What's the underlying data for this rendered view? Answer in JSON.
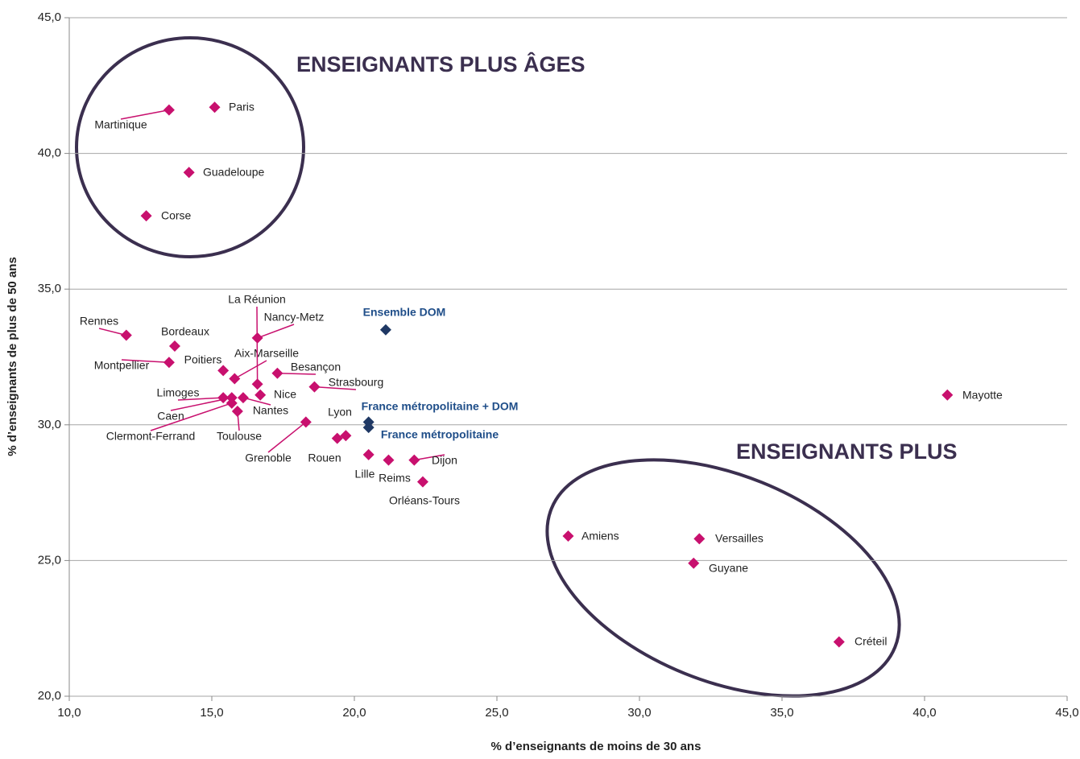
{
  "chart_data": {
    "type": "scatter",
    "xlabel": "% d’enseignants de moins de 30 ans",
    "ylabel": "% d’enseignants de plus de 50 ans",
    "annotations": [
      "ENSEIGNANTS PLUS ÂGES",
      "ENSEIGNANTS PLUS"
    ],
    "xlim": [
      10,
      45
    ],
    "ylim": [
      20,
      45
    ],
    "xticks": [
      {
        "value": 10,
        "label": "10,0"
      },
      {
        "value": 15,
        "label": "15,0"
      },
      {
        "value": 20,
        "label": "20,0"
      },
      {
        "value": 25,
        "label": "25,0"
      },
      {
        "value": 30,
        "label": "30,0"
      },
      {
        "value": 35,
        "label": "35,0"
      },
      {
        "value": 40,
        "label": "40,0"
      },
      {
        "value": 45,
        "label": "45,0"
      }
    ],
    "yticks": [
      {
        "value": 20,
        "label": "20,0"
      },
      {
        "value": 25,
        "label": "25,0"
      },
      {
        "value": 30,
        "label": "30,0"
      },
      {
        "value": 35,
        "label": "35,0"
      },
      {
        "value": 40,
        "label": "40,0"
      },
      {
        "value": 45,
        "label": "45,0"
      }
    ],
    "grid": true,
    "series": [
      {
        "color": "#c8106e",
        "labels": [
          "Martinique",
          "Paris",
          "Guadeloupe",
          "Corse",
          "Rennes",
          "Bordeaux",
          "Montpellier",
          "Poitiers",
          "Aix-Marseille",
          "La Réunion",
          "Nancy-Metz",
          "Besançon",
          "Nice",
          "Strasbourg",
          "Limoges",
          "Caen",
          "Clermont-Ferrand",
          "Nantes",
          "Toulouse",
          "Grenoble",
          "Lyon",
          "Rouen",
          "Lille",
          "Reims",
          "Dijon",
          "Orléans-Tours",
          "Mayotte",
          "Amiens",
          "Versailles",
          "Guyane",
          "Créteil"
        ],
        "x": [
          13.5,
          15.1,
          14.2,
          12.7,
          12.0,
          13.7,
          13.5,
          15.4,
          15.8,
          16.6,
          16.6,
          17.3,
          16.7,
          18.6,
          15.4,
          15.7,
          15.7,
          16.1,
          15.9,
          18.3,
          19.7,
          19.4,
          20.5,
          21.2,
          22.1,
          22.4,
          40.8,
          27.5,
          32.1,
          31.9,
          37.0
        ],
        "values": [
          41.6,
          41.7,
          39.3,
          37.7,
          33.3,
          32.9,
          32.3,
          32.0,
          31.7,
          31.5,
          33.2,
          31.9,
          31.1,
          31.4,
          31.0,
          31.0,
          30.8,
          31.0,
          30.5,
          30.1,
          29.6,
          29.5,
          28.9,
          28.7,
          28.7,
          27.9,
          31.1,
          25.9,
          25.8,
          24.9,
          22.0
        ]
      },
      {
        "color": "#1f3864",
        "labels": [
          "Ensemble DOM",
          "France métropolitaine + DOM",
          "France métropolitaine"
        ],
        "x": [
          21.1,
          20.5,
          20.5
        ],
        "values": [
          33.5,
          30.1,
          29.9
        ]
      }
    ]
  }
}
